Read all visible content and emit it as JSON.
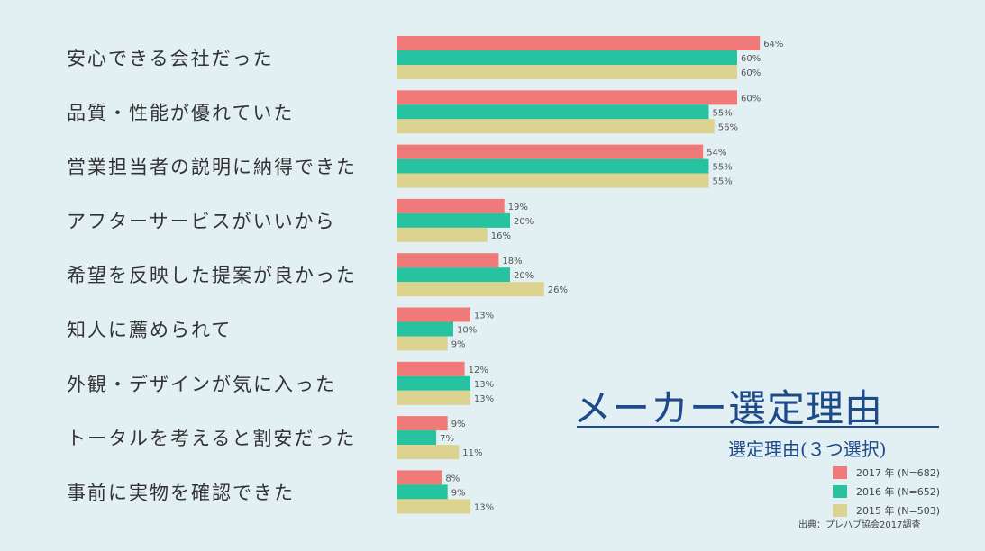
{
  "chart_data": {
    "type": "bar",
    "orientation": "horizontal",
    "title": "メーカー選定理由",
    "subtitle": "選定理由(３つ選択)",
    "source": "出典：プレハブ協会2017調査",
    "categories": [
      "安心できる会社だった",
      "品質・性能が優れていた",
      "営業担当者の説明に納得できた",
      "アフターサービスがいいから",
      "希望を反映した提案が良かった",
      "知人に薦められて",
      "外観・デザインが気に入った",
      "トータルを考えると割安だった",
      "事前に実物を確認できた"
    ],
    "series": [
      {
        "name": "2017 年 (N=682)",
        "color": "#f07a7a",
        "values": [
          64,
          60,
          54,
          19,
          18,
          13,
          12,
          9,
          8
        ],
        "labels": [
          "64%",
          "60%",
          "54%",
          "19%",
          "18%",
          "13%",
          "12%",
          "9%",
          "8%"
        ]
      },
      {
        "name": "2016 年 (N=652)",
        "color": "#27c2a0",
        "values": [
          60,
          55,
          55,
          20,
          20,
          10,
          13,
          7,
          9
        ],
        "labels": [
          "60%",
          "55%",
          "55%",
          "20%",
          "20%",
          "10%",
          "13%",
          "7%",
          "9%"
        ]
      },
      {
        "name": "2015 年 (N=503)",
        "color": "#ddd391",
        "values": [
          60,
          56,
          55,
          16,
          26,
          9,
          13,
          11,
          13
        ],
        "labels": [
          "60%",
          "56%",
          "55%",
          "16%",
          "26%",
          "9%",
          "13%",
          "11%",
          "13%"
        ]
      }
    ],
    "unit": "%",
    "legend_position": "bottom-right",
    "grid": false
  }
}
